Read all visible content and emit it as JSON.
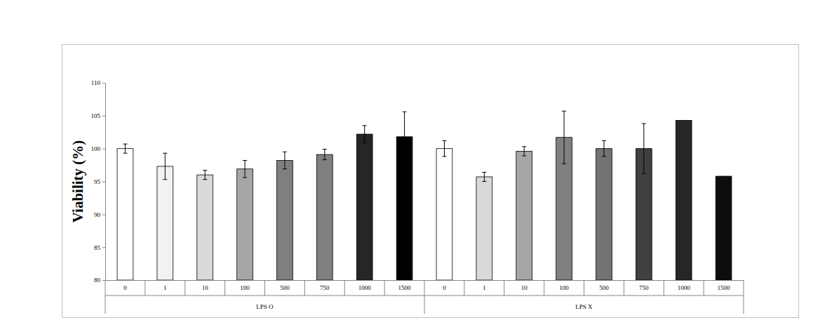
{
  "chart_data": {
    "type": "bar",
    "y_label": "Viability (%)",
    "categories": [
      "0",
      "1",
      "10",
      "100",
      "500",
      "750",
      "1000",
      "1500",
      "0",
      "1",
      "10",
      "100",
      "500",
      "750",
      "1000",
      "1500"
    ],
    "groups": [
      "LPS O",
      "LPS X"
    ],
    "values": [
      100,
      97.3,
      96.0,
      96.9,
      98.2,
      99.1,
      102.2,
      101.8,
      100,
      95.7,
      99.6,
      101.7,
      100,
      100,
      104.3,
      95.8
    ],
    "errors": [
      0.7,
      2.0,
      0.7,
      1.3,
      1.3,
      0.8,
      1.3,
      3.8,
      1.2,
      0.7,
      0.7,
      4.0,
      1.2,
      3.8,
      null,
      null
    ],
    "colors": [
      "#ffffff",
      "#f2f2f2",
      "#d9d9d9",
      "#a6a6a6",
      "#7f7f7f",
      "#808080",
      "#262626",
      "#000000",
      "#ffffff",
      "#d9d9d9",
      "#a6a6a6",
      "#808080",
      "#737373",
      "#404040",
      "#262626",
      "#0d0d0d"
    ],
    "ylim": [
      80,
      110
    ],
    "yticks": [
      80,
      85,
      90,
      95,
      100,
      105,
      110
    ],
    "grid": false
  }
}
